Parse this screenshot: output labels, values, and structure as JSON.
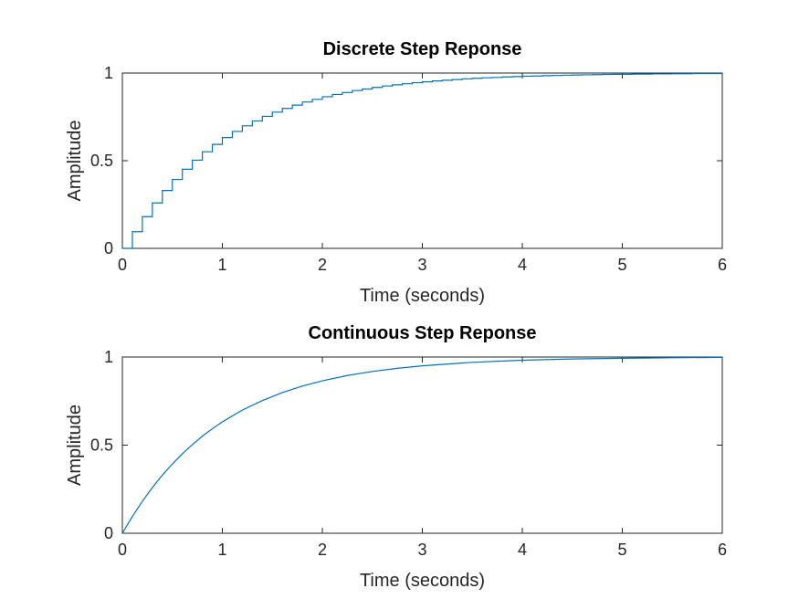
{
  "chart_data": [
    {
      "type": "line",
      "style": "stairs",
      "title": "Discrete Step Reponse",
      "xlabel": "Time (seconds)",
      "ylabel": "Amplitude",
      "xlim": [
        0,
        6
      ],
      "ylim": [
        0,
        1
      ],
      "xticks": [
        "0",
        "1",
        "2",
        "3",
        "4",
        "5",
        "6"
      ],
      "yticks": [
        "0",
        "0.5",
        "1"
      ],
      "xtick_values": [
        0,
        1,
        2,
        3,
        4,
        5,
        6
      ],
      "ytick_values": [
        0,
        0.5,
        1
      ],
      "grid": false,
      "reference_line": 1,
      "color": "#0072BD",
      "x": [
        0,
        0.1,
        0.2,
        0.3,
        0.4,
        0.5,
        0.6,
        0.7,
        0.8,
        0.9,
        1.0,
        1.1,
        1.2,
        1.3,
        1.4,
        1.5,
        1.6,
        1.7,
        1.8,
        1.9,
        2.0,
        2.1,
        2.2,
        2.3,
        2.4,
        2.5,
        2.6,
        2.7,
        2.8,
        2.9,
        3.0,
        3.1,
        3.2,
        3.3,
        3.4,
        3.5,
        3.6,
        3.7,
        3.8,
        3.9,
        4.0,
        4.1,
        4.2,
        4.3,
        4.4,
        4.5,
        4.6,
        4.7,
        4.8,
        4.9,
        5.0,
        5.1,
        5.2,
        5.3,
        5.4,
        5.5,
        5.6,
        5.7,
        5.8,
        5.9,
        6.0
      ],
      "y": [
        0,
        0.095,
        0.181,
        0.259,
        0.33,
        0.393,
        0.451,
        0.503,
        0.551,
        0.593,
        0.632,
        0.667,
        0.699,
        0.727,
        0.753,
        0.777,
        0.798,
        0.817,
        0.835,
        0.85,
        0.865,
        0.878,
        0.889,
        0.9,
        0.909,
        0.918,
        0.926,
        0.933,
        0.939,
        0.945,
        0.95,
        0.955,
        0.959,
        0.963,
        0.967,
        0.97,
        0.973,
        0.975,
        0.978,
        0.98,
        0.982,
        0.983,
        0.985,
        0.986,
        0.988,
        0.989,
        0.99,
        0.991,
        0.992,
        0.993,
        0.993,
        0.994,
        0.994,
        0.995,
        0.995,
        0.996,
        0.996,
        0.997,
        0.997,
        0.997,
        0.998
      ]
    },
    {
      "type": "line",
      "style": "line",
      "title": "Continuous Step Reponse",
      "xlabel": "Time (seconds)",
      "ylabel": "Amplitude",
      "xlim": [
        0,
        6
      ],
      "ylim": [
        0,
        1
      ],
      "xticks": [
        "0",
        "1",
        "2",
        "3",
        "4",
        "5",
        "6"
      ],
      "yticks": [
        "0",
        "0.5",
        "1"
      ],
      "xtick_values": [
        0,
        1,
        2,
        3,
        4,
        5,
        6
      ],
      "ytick_values": [
        0,
        0.5,
        1
      ],
      "grid": false,
      "reference_line": 1,
      "color": "#0072BD",
      "x": [
        0,
        0.1,
        0.2,
        0.3,
        0.4,
        0.5,
        0.6,
        0.7,
        0.8,
        0.9,
        1.0,
        1.2,
        1.4,
        1.6,
        1.8,
        2.0,
        2.25,
        2.5,
        2.75,
        3.0,
        3.5,
        4.0,
        4.5,
        5.0,
        5.5,
        6.0
      ],
      "y": [
        0,
        0.095,
        0.181,
        0.259,
        0.33,
        0.393,
        0.451,
        0.503,
        0.551,
        0.593,
        0.632,
        0.699,
        0.753,
        0.798,
        0.835,
        0.865,
        0.895,
        0.918,
        0.936,
        0.95,
        0.97,
        0.982,
        0.989,
        0.993,
        0.996,
        0.998
      ]
    }
  ]
}
